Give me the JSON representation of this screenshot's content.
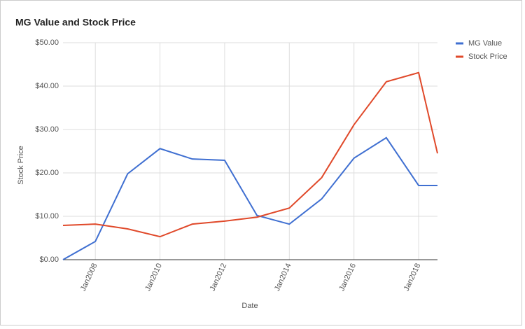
{
  "chart_data": {
    "type": "line",
    "title": "MG Value and Stock Price",
    "x_label": "Date",
    "y_label": "Stock Price",
    "x": [
      "2007-01",
      "2008-01",
      "2009-01",
      "2010-01",
      "2011-01",
      "2012-01",
      "2013-01",
      "2014-01",
      "2015-01",
      "2016-01",
      "2017-01",
      "2018-01",
      "2018-08"
    ],
    "series": [
      {
        "name": "MG Value",
        "color": "#3f6fd1",
        "values": [
          0,
          4.2,
          19.8,
          25.6,
          23.2,
          22.9,
          10.2,
          8.2,
          14.0,
          23.4,
          28.1,
          17.1,
          17.1
        ]
      },
      {
        "name": "Stock Price",
        "color": "#e0492a",
        "values": [
          7.9,
          8.2,
          7.1,
          5.3,
          8.2,
          8.9,
          9.8,
          11.9,
          18.9,
          31.1,
          41.0,
          43.1,
          24.5
        ]
      }
    ],
    "xlim": [
      "2007-01",
      "2018-08"
    ],
    "xticks": [
      {
        "value": "2008-01",
        "label": "Jan2008"
      },
      {
        "value": "2010-01",
        "label": "Jan2010"
      },
      {
        "value": "2012-01",
        "label": "Jan2012"
      },
      {
        "value": "2014-01",
        "label": "Jan2014"
      },
      {
        "value": "2016-01",
        "label": "Jan2016"
      },
      {
        "value": "2018-01",
        "label": "Jan2018"
      }
    ],
    "ylim": [
      0,
      50
    ],
    "yticks": [
      {
        "value": 0,
        "label": "$0.00"
      },
      {
        "value": 10,
        "label": "$10.00"
      },
      {
        "value": 20,
        "label": "$20.00"
      },
      {
        "value": 30,
        "label": "$30.00"
      },
      {
        "value": 40,
        "label": "$40.00"
      },
      {
        "value": 50,
        "label": "$50.00"
      }
    ],
    "grid": true,
    "legend": "top-right"
  }
}
